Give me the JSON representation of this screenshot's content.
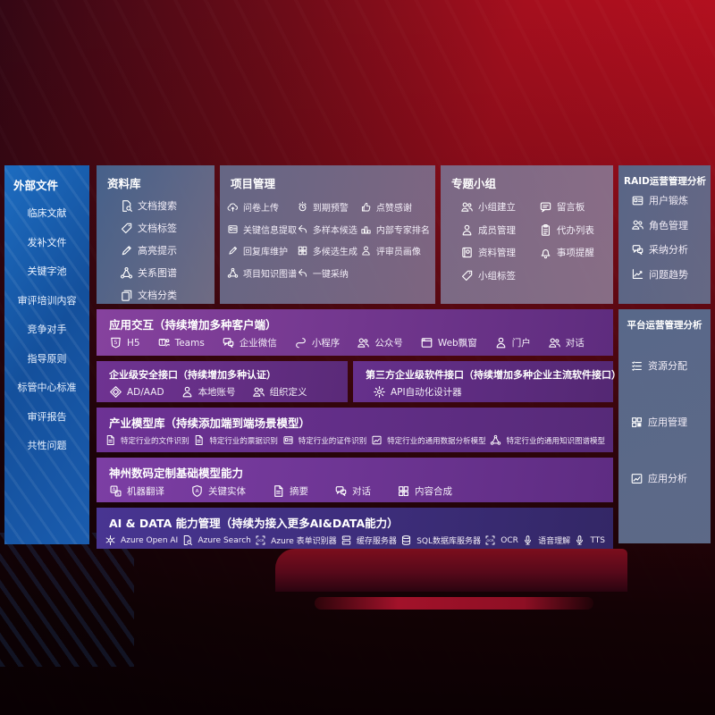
{
  "left_sidebar": {
    "title": "外部文件",
    "items": [
      {
        "label": "临床文献"
      },
      {
        "label": "发补文件"
      },
      {
        "label": "关键字池"
      },
      {
        "label": "审评培训内容"
      },
      {
        "label": "竞争对手"
      },
      {
        "label": "指导原则"
      },
      {
        "label": "标管中心标准"
      },
      {
        "label": "审评报告"
      },
      {
        "label": "共性问题"
      }
    ]
  },
  "library_panel": {
    "title": "资料库",
    "items": [
      {
        "icon": "doc-search",
        "label": "文档搜索"
      },
      {
        "icon": "tag",
        "label": "文档标签"
      },
      {
        "icon": "highlight-pencil",
        "label": "高亮提示"
      },
      {
        "icon": "relation-graph",
        "label": "关系图谱"
      },
      {
        "icon": "doc-category",
        "label": "文档分类"
      }
    ]
  },
  "project_panel": {
    "title": "项目管理",
    "items": [
      {
        "icon": "cloud-upload",
        "label": "问卷上传"
      },
      {
        "icon": "alarm",
        "label": "到期预警"
      },
      {
        "icon": "thumbs-up",
        "label": "点赞感谢"
      },
      {
        "icon": "doc-extract",
        "label": "关键信息提取"
      },
      {
        "icon": "reply-arrow",
        "label": "多样本候选"
      },
      {
        "icon": "ranking",
        "label": "内部专家排名"
      },
      {
        "icon": "pencil",
        "label": "回复库维护"
      },
      {
        "icon": "puzzle",
        "label": "多候选生成"
      },
      {
        "icon": "person",
        "label": "评审员画像"
      },
      {
        "icon": "knowledge-graph",
        "label": "项目知识图谱"
      },
      {
        "icon": "adopt-arrow",
        "label": "一键采纳"
      }
    ]
  },
  "group_panel": {
    "title": "专题小组",
    "items": [
      {
        "icon": "team",
        "label": "小组建立"
      },
      {
        "icon": "bbs",
        "label": "留言板"
      },
      {
        "icon": "member",
        "label": "成员管理"
      },
      {
        "icon": "todo-list",
        "label": "代办列表"
      },
      {
        "icon": "album",
        "label": "资料管理"
      },
      {
        "icon": "bell",
        "label": "事项提醒"
      },
      {
        "icon": "tag",
        "label": "小组标签"
      }
    ]
  },
  "raid_panel": {
    "title": "RAID运营管理分析",
    "items": [
      {
        "icon": "id-card",
        "label": "用户锻炼"
      },
      {
        "icon": "roles",
        "label": "角色管理"
      },
      {
        "icon": "chat-analysis",
        "label": "采纳分析"
      },
      {
        "icon": "trend-chart",
        "label": "问题趋势"
      }
    ]
  },
  "platform_panel": {
    "title": "平台运营管理分析",
    "items": [
      {
        "icon": "resource-list",
        "label": "资源分配"
      },
      {
        "icon": "app-grid",
        "label": "应用管理"
      },
      {
        "icon": "app-analysis",
        "label": "应用分析"
      }
    ]
  },
  "interaction_row": {
    "title": "应用交互（持续增加多种客户端）",
    "items": [
      {
        "icon": "h5",
        "label": "H5"
      },
      {
        "icon": "teams",
        "label": "Teams"
      },
      {
        "icon": "wechat-work",
        "label": "企业微信"
      },
      {
        "icon": "mini-program",
        "label": "小程序"
      },
      {
        "icon": "official-account",
        "label": "公众号"
      },
      {
        "icon": "web-window",
        "label": "Web飘窗"
      },
      {
        "icon": "portal",
        "label": "门户"
      },
      {
        "icon": "dialog",
        "label": "对话"
      }
    ]
  },
  "security_row": {
    "title": "企业级安全接口（持续增加多种认证）",
    "items": [
      {
        "icon": "ad-aad",
        "label": "AD/AAD"
      },
      {
        "icon": "local-account",
        "label": "本地账号"
      },
      {
        "icon": "org-define",
        "label": "组织定义"
      }
    ]
  },
  "thirdparty_row": {
    "title": "第三方企业级软件接口（持续增加多种企业主流软件接口）",
    "items": [
      {
        "icon": "api-gear",
        "label": "API自动化设计器"
      }
    ]
  },
  "model_row": {
    "title": "产业模型库（持续添加端到端场景模型）",
    "items": [
      {
        "icon": "doc-recognize",
        "label": "特定行业的文件识别"
      },
      {
        "icon": "receipt",
        "label": "特定行业的票据识别"
      },
      {
        "icon": "id-card",
        "label": "特定行业的证件识别"
      },
      {
        "icon": "data-chart",
        "label": "特定行业的通用数据分析模型"
      },
      {
        "icon": "knowledge-graph",
        "label": "特定行业的通用知识图谱模型"
      }
    ]
  },
  "base_model_row": {
    "title": "神州数码定制基础模型能力",
    "items": [
      {
        "icon": "translate",
        "label": "机器翻译"
      },
      {
        "icon": "entity-shield",
        "label": "关键实体"
      },
      {
        "icon": "summary-doc",
        "label": "摘要"
      },
      {
        "icon": "chat",
        "label": "对话"
      },
      {
        "icon": "compose-puzzle",
        "label": "内容合成"
      }
    ]
  },
  "ai_data_row": {
    "title": "AI & DATA 能力管理（持续为接入更多AI&DATA能力）",
    "items": [
      {
        "icon": "openai",
        "label": "Azure Open AI"
      },
      {
        "icon": "search-doc",
        "label": "Azure Search"
      },
      {
        "icon": "form-recognizer",
        "label": "Azure 表单识别器"
      },
      {
        "icon": "cache-server",
        "label": "缓存服务器"
      },
      {
        "icon": "sql-database",
        "label": "SQL数据库服务器"
      },
      {
        "icon": "ocr",
        "label": "OCR"
      },
      {
        "icon": "speech-understand",
        "label": "语音理解"
      },
      {
        "icon": "tts",
        "label": "TTS"
      }
    ]
  },
  "colors": {
    "background_red": "#a60f1e",
    "sidebar_blue": "#1a5cae",
    "panel_slate": "#5f7191",
    "row_purple": "#6d3295",
    "row_indigo": "#483592"
  }
}
